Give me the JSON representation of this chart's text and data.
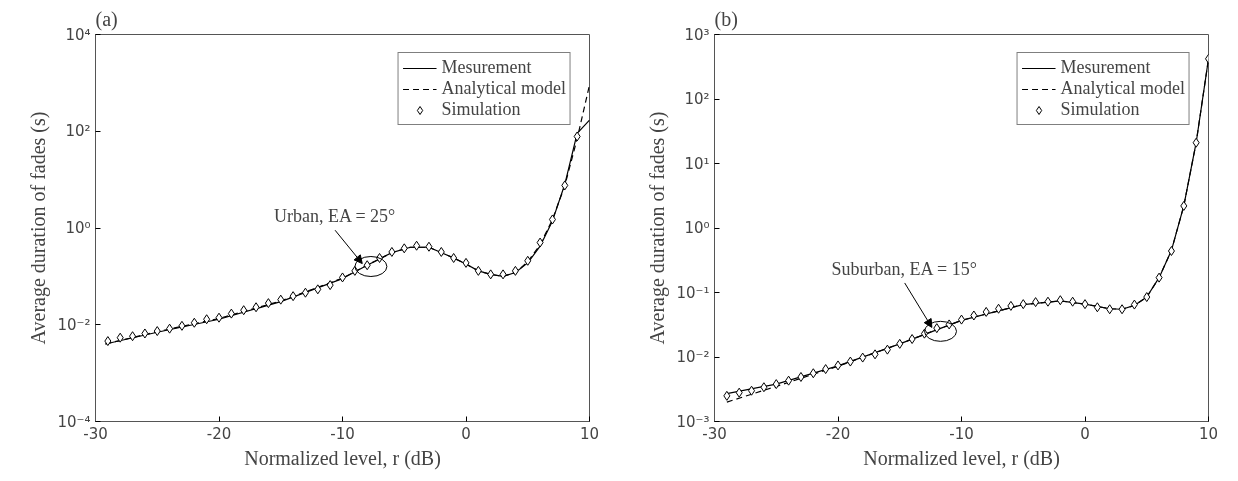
{
  "chart_data": [
    {
      "type": "line",
      "title": "(a)",
      "xlabel": "Normalized level, r (dB)",
      "ylabel": "Average duration of fades (s)",
      "log": "y",
      "grid": false,
      "legend": "top right",
      "xlim": [
        -30,
        10
      ],
      "xticks": [
        -30,
        -20,
        -10,
        0,
        10
      ],
      "ylim": [
        0.0001,
        10000
      ],
      "yticks": [
        {
          "value": 0.0001,
          "label": "10⁻⁴"
        },
        {
          "value": 0.01,
          "label": "10⁻²"
        },
        {
          "value": 1,
          "label": "10⁰"
        },
        {
          "value": 100,
          "label": "10²"
        },
        {
          "value": 10000,
          "label": "10⁴"
        }
      ],
      "annotations": [
        {
          "text": "Urban, EA = 25°",
          "x": -8,
          "y": 0.16
        }
      ],
      "series": [
        {
          "name": "Mesurement",
          "line_style": "solid",
          "color": "#000000",
          "x": [
            -29.2,
            -25,
            -20,
            -15,
            -10,
            -8,
            -6,
            -4.5,
            -3,
            -1,
            0,
            1,
            2,
            3,
            4,
            5,
            6,
            7,
            8,
            9,
            10
          ],
          "values": [
            0.004,
            0.007,
            0.013,
            0.03,
            0.09,
            0.17,
            0.31,
            0.4,
            0.4,
            0.24,
            0.18,
            0.13,
            0.11,
            0.1,
            0.12,
            0.19,
            0.42,
            1.4,
            8,
            90,
            170
          ]
        },
        {
          "name": "Analytical model",
          "line_style": "dashed",
          "color": "#000000",
          "x": [
            -29.2,
            -25,
            -20,
            -15,
            -10,
            -8,
            -6,
            -4.5,
            -3,
            -1,
            0,
            1,
            2,
            3,
            4,
            5,
            6,
            7,
            8,
            9,
            10
          ],
          "values": [
            0.004,
            0.0072,
            0.0135,
            0.031,
            0.092,
            0.17,
            0.31,
            0.4,
            0.4,
            0.24,
            0.18,
            0.13,
            0.11,
            0.1,
            0.12,
            0.2,
            0.45,
            1.5,
            7.5,
            70,
            900
          ]
        },
        {
          "name": "Simulation",
          "type": "scatter",
          "marker": "diamond",
          "color": "#000000",
          "x": [
            -29,
            -28,
            -27,
            -26,
            -25,
            -24,
            -23,
            -22,
            -21,
            -20,
            -19,
            -18,
            -17,
            -16,
            -15,
            -14,
            -13,
            -12,
            -11,
            -10,
            -9,
            -8,
            -7,
            -6,
            -5,
            -4,
            -3,
            -2,
            -1,
            0,
            1,
            2,
            3,
            4,
            5,
            6,
            7,
            8,
            9
          ],
          "values": [
            0.0046,
            0.0054,
            0.0058,
            0.0066,
            0.0074,
            0.0083,
            0.0095,
            0.011,
            0.013,
            0.014,
            0.017,
            0.02,
            0.023,
            0.028,
            0.033,
            0.039,
            0.046,
            0.054,
            0.066,
            0.095,
            0.13,
            0.17,
            0.24,
            0.32,
            0.38,
            0.43,
            0.41,
            0.32,
            0.24,
            0.19,
            0.13,
            0.11,
            0.11,
            0.13,
            0.21,
            0.5,
            1.5,
            7.6,
            78
          ]
        }
      ]
    },
    {
      "type": "line",
      "title": "(b)",
      "xlabel": "Normalized level, r (dB)",
      "ylabel": "Average duration of fades (s)",
      "log": "y",
      "grid": false,
      "legend": "top right",
      "xlim": [
        -30,
        10
      ],
      "xticks": [
        -30,
        -20,
        -10,
        0,
        10
      ],
      "ylim": [
        0.001,
        1000
      ],
      "yticks": [
        {
          "value": 0.001,
          "label": "10⁻³"
        },
        {
          "value": 0.01,
          "label": "10⁻²"
        },
        {
          "value": 0.1,
          "label": "10⁻¹"
        },
        {
          "value": 1,
          "label": "10⁰"
        },
        {
          "value": 10,
          "label": "10¹"
        },
        {
          "value": 100,
          "label": "10²"
        },
        {
          "value": 1000,
          "label": "10³"
        }
      ],
      "annotations": [
        {
          "text": "Suburban, EA = 15°",
          "x": -12,
          "y": 0.025
        }
      ],
      "series": [
        {
          "name": "Mesurement",
          "line_style": "solid",
          "color": "#000000",
          "x": [
            -29,
            -25,
            -20,
            -15,
            -10,
            -5,
            -2,
            0,
            2,
            3,
            4,
            5,
            6,
            7,
            8,
            9,
            10
          ],
          "values": [
            0.0027,
            0.0038,
            0.0073,
            0.016,
            0.037,
            0.065,
            0.074,
            0.066,
            0.056,
            0.055,
            0.063,
            0.085,
            0.17,
            0.45,
            2.2,
            21,
            420
          ]
        },
        {
          "name": "Analytical model",
          "line_style": "dashed",
          "color": "#000000",
          "x": [
            -29,
            -25,
            -20,
            -15,
            -10,
            -5,
            -2,
            0,
            2,
            3,
            4,
            5,
            6,
            7,
            8,
            9,
            10
          ],
          "values": [
            0.002,
            0.0035,
            0.0072,
            0.016,
            0.037,
            0.065,
            0.074,
            0.066,
            0.056,
            0.055,
            0.063,
            0.085,
            0.17,
            0.45,
            2.2,
            21,
            420
          ]
        },
        {
          "name": "Simulation",
          "type": "scatter",
          "marker": "diamond",
          "color": "#000000",
          "x": [
            -29,
            -28,
            -27,
            -26,
            -25,
            -24,
            -23,
            -22,
            -21,
            -20,
            -19,
            -18,
            -17,
            -16,
            -15,
            -14,
            -13,
            -12,
            -11,
            -10,
            -9,
            -8,
            -7,
            -6,
            -5,
            -4,
            -3,
            -2,
            -1,
            0,
            1,
            2,
            3,
            4,
            5,
            6,
            7,
            8,
            9,
            10
          ],
          "values": [
            0.0025,
            0.0028,
            0.003,
            0.0034,
            0.0038,
            0.0043,
            0.0049,
            0.0056,
            0.0065,
            0.0074,
            0.0085,
            0.0098,
            0.011,
            0.013,
            0.016,
            0.019,
            0.023,
            0.028,
            0.032,
            0.038,
            0.044,
            0.05,
            0.056,
            0.062,
            0.066,
            0.071,
            0.072,
            0.076,
            0.072,
            0.066,
            0.059,
            0.055,
            0.055,
            0.065,
            0.085,
            0.17,
            0.44,
            2.2,
            21,
            420
          ]
        }
      ]
    }
  ]
}
